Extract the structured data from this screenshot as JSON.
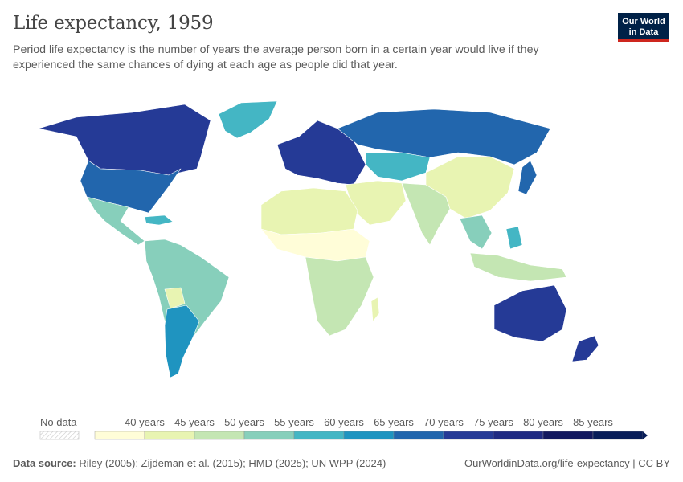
{
  "header": {
    "title": "Life expectancy, 1959",
    "subtitle": "Period life expectancy is the number of years the average person born in a certain year would live if they experienced the same chances of dying at each age as people did that year."
  },
  "logo": {
    "line1": "Our World",
    "line2": "in Data",
    "bg_color": "#002147",
    "bar_color": "#ce261e"
  },
  "legend": {
    "no_data_label": "No data",
    "bins": [
      {
        "label": "",
        "color": "#fffdd8"
      },
      {
        "label": "40 years",
        "color": "#e8f4b2"
      },
      {
        "label": "45 years",
        "color": "#c4e6b3"
      },
      {
        "label": "50 years",
        "color": "#87cfbb"
      },
      {
        "label": "55 years",
        "color": "#44b6c4"
      },
      {
        "label": "60 years",
        "color": "#1f94c0"
      },
      {
        "label": "65 years",
        "color": "#2266ad"
      },
      {
        "label": "70 years",
        "color": "#253a96"
      },
      {
        "label": "75 years",
        "color": "#1f2a82"
      },
      {
        "label": "80 years",
        "color": "#12185e"
      },
      {
        "label": "85 years",
        "color": "#081d58"
      }
    ]
  },
  "footer": {
    "source_label": "Data source:",
    "source_text": "Riley (2005); Zijdeman et al. (2015); HMD (2025); UN WPP (2024)",
    "link_text": "OurWorldinData.org/life-expectancy",
    "license": "CC BY"
  }
}
